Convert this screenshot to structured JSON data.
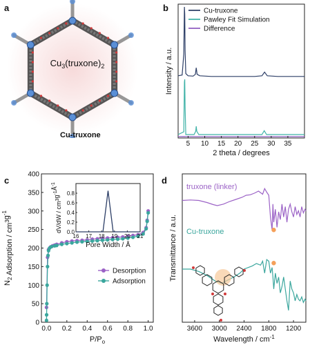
{
  "panel_a": {
    "letter": "a",
    "center_label_main": "Cu",
    "center_label_sub1": "3",
    "center_label_mid": "(truxone)",
    "center_label_sub2": "2",
    "caption": "Cu-truxone"
  },
  "chart_data": [
    {
      "panel": "b",
      "type": "line",
      "xlabel": "2 theta / degrees",
      "ylabel": "Intensity / a.u.",
      "xlim": [
        2,
        40
      ],
      "xticks": [
        5,
        10,
        15,
        20,
        25,
        30,
        35
      ],
      "yticks": [],
      "legend_position": "top-left",
      "series": [
        {
          "name": "Cu-truxone",
          "color": "#2c3e66",
          "x": [
            2,
            3.2,
            3.7,
            3.9,
            4.0,
            4.1,
            4.3,
            5,
            6.5,
            7.2,
            7.45,
            7.7,
            8.5,
            12,
            15,
            20,
            25,
            27.2,
            28.0,
            28.8,
            32,
            38,
            40
          ],
          "y": [
            0.05,
            0.06,
            0.35,
            1.0,
            0.9,
            0.4,
            0.08,
            0.05,
            0.045,
            0.07,
            0.16,
            0.07,
            0.05,
            0.04,
            0.04,
            0.04,
            0.04,
            0.05,
            0.1,
            0.05,
            0.04,
            0.04,
            0.04
          ]
        },
        {
          "name": "Pawley Fit Simulation",
          "color": "#3fb2a7",
          "x": [
            2,
            3.7,
            3.9,
            4.0,
            4.1,
            4.3,
            6.8,
            7.3,
            7.45,
            7.6,
            8.2,
            20,
            27.2,
            27.9,
            28.6,
            35,
            40
          ],
          "y": [
            0.0,
            0.05,
            0.95,
            1.0,
            0.5,
            0.0,
            0.0,
            0.06,
            0.15,
            0.06,
            0.0,
            0.0,
            0.0,
            0.07,
            0.0,
            0.0,
            0.0
          ]
        },
        {
          "name": "Difference",
          "color": "#8e5bc0",
          "x": [
            2,
            3.9,
            4.0,
            4.1,
            7.4,
            10,
            20,
            28,
            40
          ],
          "y": [
            0.0,
            0.01,
            -0.01,
            0.005,
            0.005,
            0.0,
            0.0,
            0.003,
            0.0
          ]
        }
      ]
    },
    {
      "panel": "c",
      "type": "line",
      "xlabel": "P/P",
      "xlabel_sub": "o",
      "ylabel_prefix": "N",
      "ylabel_sub": "2",
      "ylabel_mid": " Adsorption / cm",
      "ylabel_sup1": "3",
      "ylabel_mid2": "g",
      "ylabel_sup2": "-1",
      "xlim": [
        -0.05,
        1.05
      ],
      "ylim": [
        0,
        400
      ],
      "xticks": [
        "0.0",
        "0.2",
        "0.4",
        "0.6",
        "0.8",
        "1.0"
      ],
      "yticks": [
        "0",
        "50",
        "100",
        "150",
        "200",
        "250",
        "300",
        "350",
        "400"
      ],
      "legend_position": "bottom-right",
      "series": [
        {
          "name": "Desorption",
          "color": "#9b62c6",
          "x": [
            0.0,
            0.01,
            0.02,
            0.04,
            0.06,
            0.08,
            0.1,
            0.15,
            0.2,
            0.25,
            0.3,
            0.35,
            0.4,
            0.45,
            0.5,
            0.55,
            0.6,
            0.65,
            0.7,
            0.75,
            0.8,
            0.85,
            0.9,
            0.95,
            0.98,
            0.99,
            1.0
          ],
          "y": [
            40,
            175,
            196,
            203,
            206,
            208,
            210,
            214,
            217,
            219,
            220,
            221,
            222,
            224,
            225,
            226,
            227,
            228,
            229,
            230,
            232,
            234,
            236,
            242,
            255,
            275,
            300
          ]
        },
        {
          "name": "Adsorption",
          "color": "#3aa69d",
          "x": [
            0.0,
            0.001,
            0.003,
            0.006,
            0.01,
            0.015,
            0.02,
            0.03,
            0.05,
            0.08,
            0.1,
            0.15,
            0.2,
            0.25,
            0.3,
            0.35,
            0.4,
            0.45,
            0.5,
            0.55,
            0.6,
            0.65,
            0.7,
            0.75,
            0.8,
            0.85,
            0.9,
            0.95,
            0.98,
            0.99,
            1.0
          ],
          "y": [
            5,
            20,
            50,
            100,
            150,
            180,
            193,
            200,
            204,
            206,
            207,
            210,
            212,
            214,
            216,
            217,
            218,
            219,
            220,
            221,
            222,
            223,
            224,
            225,
            227,
            229,
            232,
            238,
            252,
            272,
            295
          ]
        }
      ]
    },
    {
      "panel": "c-inset",
      "type": "line",
      "xlabel": "Pore Width / Å",
      "ylabel": "dV/dW / cm",
      "ylabel_sup1": "3",
      "ylabel_mid": "g",
      "ylabel_sup2": "-1",
      "ylabel_end": "Å",
      "ylabel_sup3": "-1",
      "xlim": [
        16,
        21
      ],
      "ylim": [
        0,
        1.0
      ],
      "xticks": [
        "16",
        "17",
        "18",
        "19",
        "20",
        "21"
      ],
      "yticks": [
        "0.0",
        "0.2",
        "0.4",
        "0.6",
        "0.8"
      ],
      "series": [
        {
          "name": "",
          "color": "#2c3e66",
          "x": [
            16,
            18.1,
            18.5,
            18.9,
            21
          ],
          "y": [
            0,
            0,
            0.85,
            0,
            0
          ]
        }
      ]
    },
    {
      "panel": "d",
      "type": "line",
      "xlabel": "Wavelength / cm",
      "xlabel_sup": "-1",
      "ylabel": "Transmittance / a.u.",
      "xlim": [
        3900,
        900
      ],
      "xticks": [
        "3600",
        "3000",
        "2400",
        "1800",
        "1200"
      ],
      "xtick_values": [
        3600,
        3000,
        2400,
        1800,
        1200
      ],
      "series": [
        {
          "name": "truxone (linker)",
          "color": "#9b62c6",
          "x": [
            3900,
            3700,
            3500,
            3300,
            3150,
            3050,
            2900,
            2750,
            2600,
            2450,
            2350,
            2250,
            2150,
            2050,
            1950,
            1900,
            1850,
            1800,
            1760,
            1720,
            1700,
            1680,
            1640,
            1600,
            1560,
            1520,
            1480,
            1440,
            1400,
            1360,
            1320,
            1280,
            1240,
            1200,
            1160,
            1120,
            1080,
            1040,
            1000,
            960,
            920,
            900
          ],
          "y": [
            0.62,
            0.63,
            0.62,
            0.58,
            0.54,
            0.52,
            0.55,
            0.6,
            0.64,
            0.68,
            0.72,
            0.73,
            0.76,
            0.8,
            0.74,
            0.85,
            0.78,
            0.72,
            0.3,
            0.05,
            0.55,
            0.2,
            0.45,
            0.1,
            0.4,
            0.25,
            0.55,
            0.3,
            0.5,
            0.2,
            0.45,
            0.55,
            0.4,
            0.3,
            0.5,
            0.35,
            0.42,
            0.3,
            0.5,
            0.38,
            0.45,
            0.42
          ]
        },
        {
          "name": "Cu-truxone",
          "color": "#3aa69d",
          "x": [
            3900,
            3700,
            3500,
            3300,
            3100,
            2950,
            2800,
            2650,
            2500,
            2400,
            2300,
            2200,
            2100,
            2000,
            1950,
            1900,
            1850,
            1800,
            1760,
            1720,
            1700,
            1680,
            1640,
            1600,
            1560,
            1520,
            1480,
            1440,
            1400,
            1360,
            1320,
            1280,
            1240,
            1200,
            1160,
            1120,
            1080,
            1040,
            1000,
            960,
            920,
            900
          ],
          "y": [
            0.6,
            0.6,
            0.57,
            0.52,
            0.45,
            0.42,
            0.46,
            0.5,
            0.55,
            0.6,
            0.62,
            0.64,
            0.67,
            0.65,
            0.7,
            0.55,
            0.72,
            0.7,
            0.55,
            0.62,
            0.5,
            0.35,
            0.55,
            0.42,
            0.5,
            0.3,
            0.38,
            0.5,
            0.35,
            0.2,
            0.08,
            0.45,
            0.35,
            0.3,
            0.2,
            0.28,
            0.22,
            0.2,
            0.25,
            0.18,
            0.22,
            0.2
          ]
        }
      ],
      "markers": [
        {
          "x": 1680,
          "series": "truxone (linker)",
          "color": "#f5a05a"
        },
        {
          "x": 1680,
          "series": "Cu-truxone",
          "color": "#f5a05a"
        }
      ]
    }
  ],
  "panel_letters": {
    "b": "b",
    "c": "c",
    "d": "d"
  },
  "colors": {
    "navy": "#2c3e66",
    "teal": "#3aa69d",
    "purple": "#9b62c6",
    "orange": "#f5a05a",
    "pink_glow": "#f2c9c9",
    "blue_atom": "#5a8fd6",
    "red_atom": "#d13a3a"
  }
}
